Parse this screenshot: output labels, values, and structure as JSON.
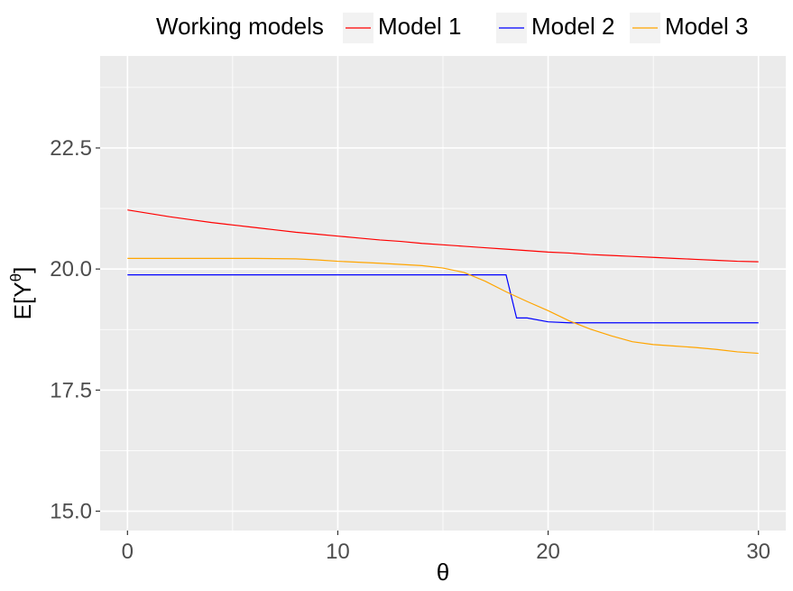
{
  "chart_data": {
    "type": "line",
    "title": "",
    "xlabel": "θ",
    "ylabel": {
      "base": "E[Y",
      "sup": "θ",
      "close": "]"
    },
    "xlim": [
      -1.3,
      31.3
    ],
    "ylim": [
      14.6,
      24.4
    ],
    "x_ticks": [
      0,
      10,
      20,
      30
    ],
    "y_ticks": [
      15.0,
      17.5,
      20.0,
      22.5
    ],
    "x_tick_labels": [
      "0",
      "10",
      "20",
      "30"
    ],
    "y_tick_labels": [
      "15.0",
      "17.5",
      "20.0",
      "22.5"
    ],
    "grid": true,
    "legend": {
      "title": "Working models",
      "position": "top"
    },
    "panel_color": "#ebebeb",
    "grid_color": "#ffffff",
    "series": [
      {
        "name": "Model 1",
        "color": "#ff0000",
        "x": [
          0,
          1,
          2,
          3,
          4,
          5,
          6,
          7,
          8,
          9,
          10,
          11,
          12,
          13,
          14,
          15,
          16,
          17,
          18,
          19,
          20,
          21,
          22,
          23,
          24,
          25,
          26,
          27,
          28,
          29,
          30
        ],
        "y": [
          21.22,
          21.15,
          21.08,
          21.02,
          20.96,
          20.91,
          20.86,
          20.81,
          20.76,
          20.72,
          20.68,
          20.64,
          20.6,
          20.57,
          20.53,
          20.5,
          20.47,
          20.44,
          20.41,
          20.38,
          20.35,
          20.33,
          20.3,
          20.28,
          20.26,
          20.24,
          20.22,
          20.2,
          20.18,
          20.16,
          20.15
        ]
      },
      {
        "name": "Model 2",
        "color": "#0000ff",
        "x": [
          0,
          18,
          18.5,
          19,
          20,
          21,
          30
        ],
        "y": [
          19.88,
          19.88,
          18.99,
          18.99,
          18.91,
          18.89,
          18.89
        ]
      },
      {
        "name": "Model 3",
        "color": "#ffa500",
        "x": [
          0,
          2,
          4,
          6,
          8,
          9,
          10,
          12,
          14,
          15,
          16,
          17,
          18,
          19,
          20,
          21,
          22,
          23,
          24,
          25,
          26,
          27,
          28,
          29,
          30
        ],
        "y": [
          20.22,
          20.22,
          20.22,
          20.22,
          20.21,
          20.19,
          20.16,
          20.12,
          20.07,
          20.02,
          19.93,
          19.75,
          19.53,
          19.33,
          19.14,
          18.93,
          18.76,
          18.62,
          18.5,
          18.44,
          18.41,
          18.38,
          18.34,
          18.29,
          18.26
        ]
      }
    ]
  }
}
